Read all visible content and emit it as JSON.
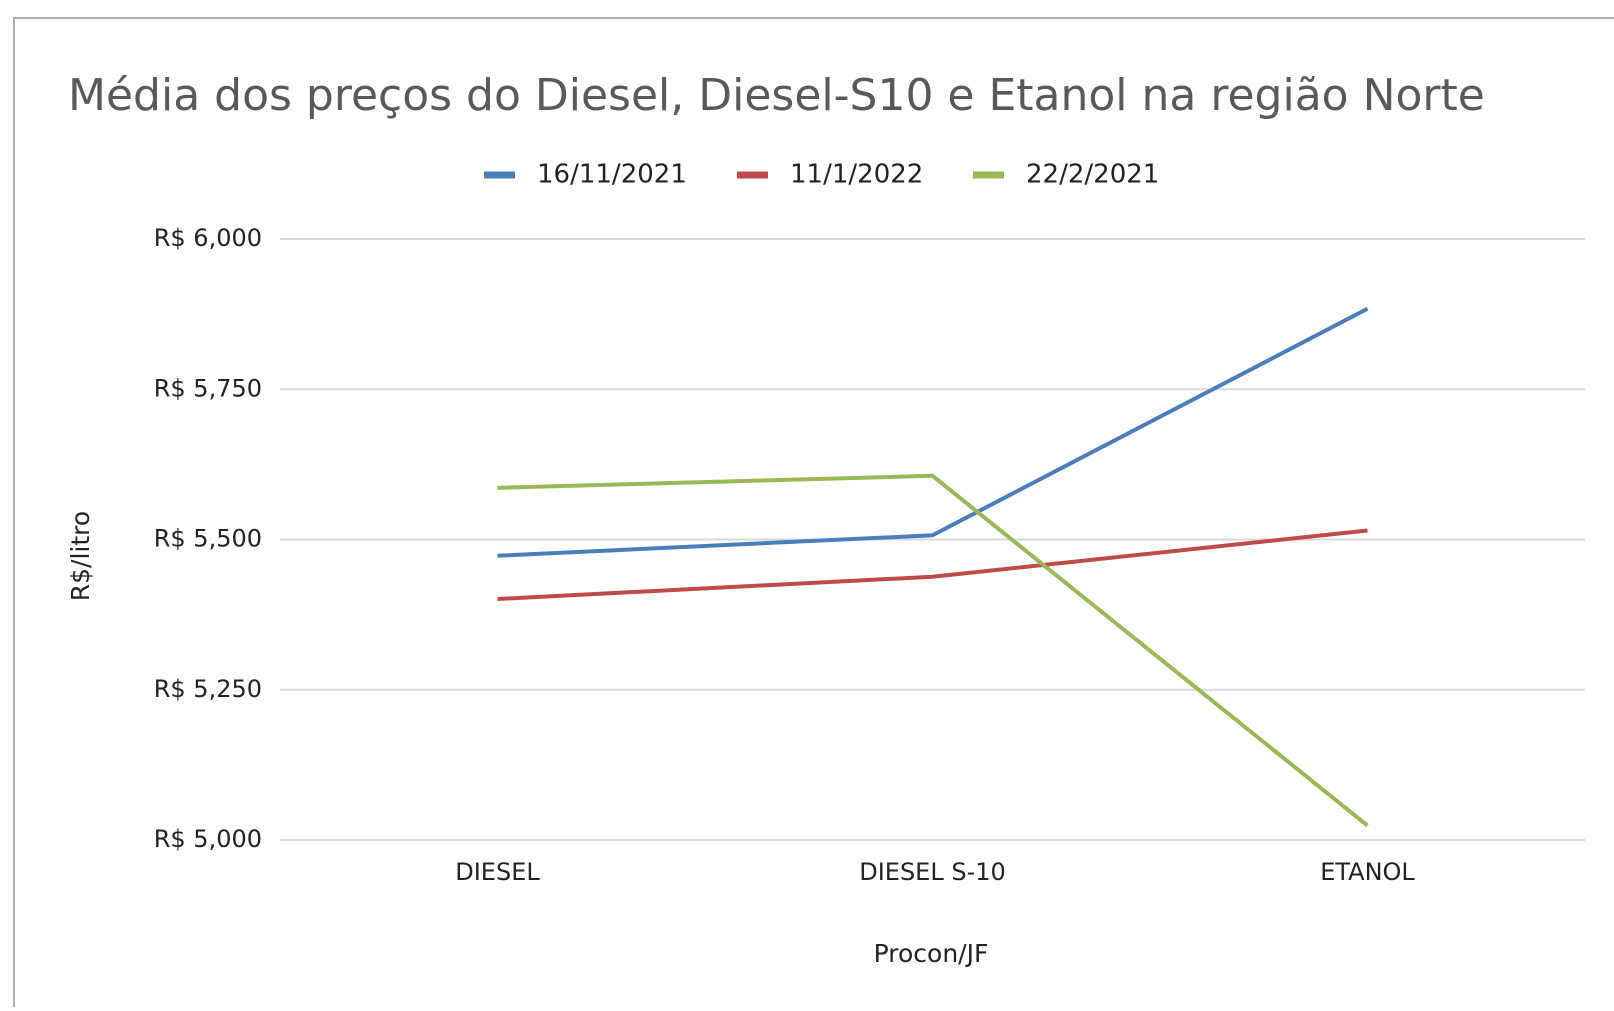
{
  "chart_data": {
    "type": "line",
    "title": "Média dos preços do Diesel, Diesel-S10 e Etanol na região Norte",
    "x_label": "Procon/JF",
    "y_label": "R$/litro",
    "categories": [
      "DIESEL",
      "DIESEL S-10",
      "ETANOL"
    ],
    "series": [
      {
        "name": "16/11/2021",
        "color": "#4a7ebb",
        "values": [
          5.473,
          5.507,
          5.884
        ]
      },
      {
        "name": "11/1/2022",
        "color": "#be4b48",
        "values": [
          5.401,
          5.438,
          5.515
        ]
      },
      {
        "name": "22/2/2021",
        "color": "#98b954",
        "values": [
          5.586,
          5.606,
          5.024
        ]
      }
    ],
    "ylim": [
      5,
      6
    ],
    "yticks": [
      {
        "value": 5,
        "label": "R$ 5,000"
      },
      {
        "value": 5.25,
        "label": "R$ 5,250"
      },
      {
        "value": 5.5,
        "label": "R$ 5,500"
      },
      {
        "value": 5.75,
        "label": "R$ 5,750"
      },
      {
        "value": 6,
        "label": "R$ 6,000"
      }
    ],
    "grid": true,
    "legend": "top"
  }
}
